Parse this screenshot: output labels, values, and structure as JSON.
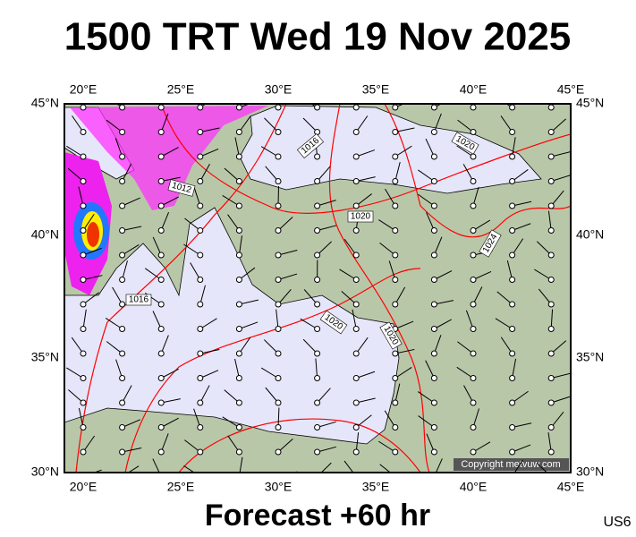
{
  "title": "1500 TRT Wed 19 Nov 2025",
  "footer": "Forecast +60 hr",
  "code": "US6",
  "copyright": "Copyright metvuw.com",
  "map": {
    "lon_labels": [
      "20°E",
      "25°E",
      "30°E",
      "35°E",
      "40°E",
      "45°E"
    ],
    "lat_labels": [
      "45°N",
      "40°N",
      "35°N",
      "30°N"
    ],
    "isobar_labels": [
      "1016",
      "1020",
      "1012",
      "1020",
      "1024",
      "1016",
      "1020",
      "1020"
    ]
  }
}
